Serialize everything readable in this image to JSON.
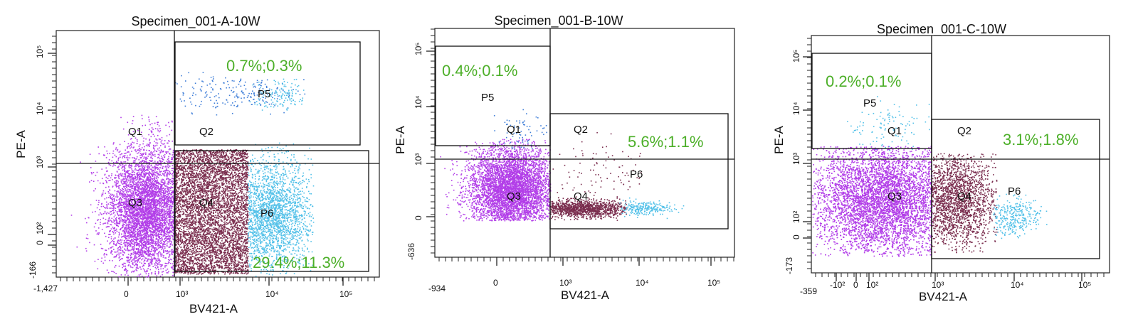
{
  "colors": {
    "q3": "#b23ee8",
    "q4": "#7a2d4e",
    "p6": "#52c0e8",
    "p5": "#3f7ed8",
    "pct_text": "#4caf28"
  },
  "chart_data": [
    {
      "type": "scatter",
      "title": "Specimen_001-A-10W",
      "xlabel": "BV421-A",
      "ylabel": "PE-A",
      "x_ticks": [
        "-1,427",
        "0",
        "10³",
        "10⁴",
        "10⁵"
      ],
      "y_ticks": [
        "-166",
        "0",
        "10²",
        "10³",
        "10⁴",
        "10⁵"
      ],
      "gates": [
        "Q1",
        "Q2",
        "Q3",
        "Q4",
        "P5",
        "P6"
      ],
      "annotations": [
        "0.7%;0.3%",
        "29.4%;11.3%"
      ],
      "populations": [
        {
          "name": "Q3",
          "percent": null
        },
        {
          "name": "P5",
          "percent": 0.7,
          "percent_parent": 0.3
        },
        {
          "name": "P6",
          "percent": 29.4,
          "percent_parent": 11.3
        }
      ]
    },
    {
      "type": "scatter",
      "title": "Specimen_001-B-10W",
      "xlabel": "BV421-A",
      "ylabel": "PE-A",
      "x_ticks": [
        "-934",
        "0",
        "10³",
        "10⁴",
        "10⁵"
      ],
      "y_ticks": [
        "-636",
        "0",
        "10³",
        "10⁴",
        "10⁵"
      ],
      "gates": [
        "Q1",
        "Q2",
        "Q3",
        "Q4",
        "P5",
        "P6"
      ],
      "annotations": [
        "0.4%;0.1%",
        "5.6%;1.1%"
      ],
      "populations": [
        {
          "name": "P5",
          "percent": 0.4,
          "percent_parent": 0.1
        },
        {
          "name": "P6",
          "percent": 5.6,
          "percent_parent": 1.1
        }
      ]
    },
    {
      "type": "scatter",
      "title": "Specimen_001-C-10W",
      "xlabel": "BV421-A",
      "ylabel": "PE-A",
      "x_ticks": [
        "-359",
        "-10²",
        "0",
        "10²",
        "10³",
        "10⁴",
        "10⁵"
      ],
      "y_ticks": [
        "-173",
        "0",
        "10²",
        "10³",
        "10⁴",
        "10⁵"
      ],
      "gates": [
        "Q1",
        "Q2",
        "Q3",
        "Q4",
        "P5",
        "P6"
      ],
      "annotations": [
        "0.2%;0.1%",
        "3.1%;1.8%"
      ],
      "populations": [
        {
          "name": "P5",
          "percent": 0.2,
          "percent_parent": 0.1
        },
        {
          "name": "P6",
          "percent": 3.1,
          "percent_parent": 1.8
        }
      ]
    }
  ]
}
